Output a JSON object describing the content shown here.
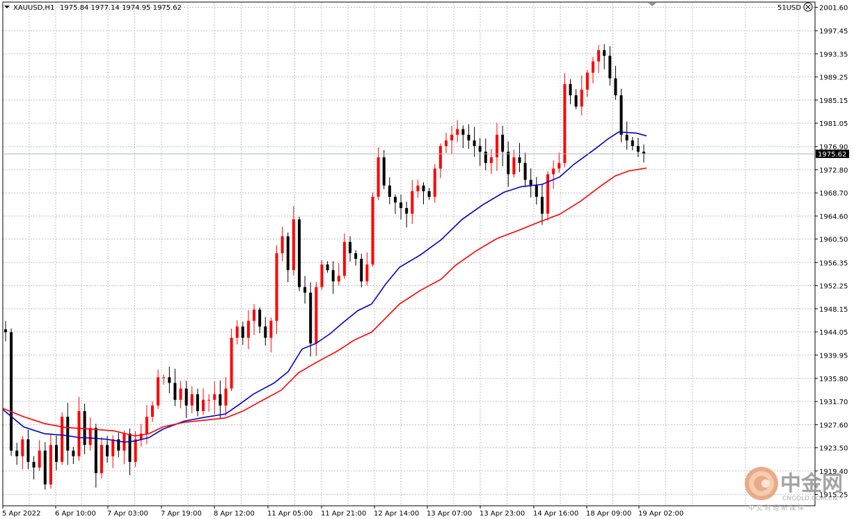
{
  "header": {
    "symbol_info": "XAUUSD,H1",
    "ohlc": "1975.84 1977.14 1974.95 1975.62",
    "account": "51USD",
    "close_icon": "close-circle-icon",
    "menu_icon": "triangle-down-icon"
  },
  "watermark": {
    "brand": "中金网",
    "sub": "中 文 财 经 新 媒 体",
    "domain": "CNGOLD.COM.CN",
    "logo_icon": "cngold-logo-icon"
  },
  "colors": {
    "bull": "#ff0000",
    "bear": "#000000",
    "ma_fast": "#0000cd",
    "ma_slow": "#ff0000",
    "grid": "#c0c0c0",
    "price_line": "#a7b4c5",
    "price_tag_bg": "#000000",
    "price_tag_fg": "#ffffff"
  },
  "chart_data": {
    "type": "candlestick",
    "symbol": "XAUUSD",
    "timeframe": "H1",
    "current_price": 1975.62,
    "ylim": [
      1915.25,
      2001.6
    ],
    "y_ticks": [
      "2001.60",
      "1997.45",
      "1993.35",
      "1989.25",
      "1985.15",
      "1981.05",
      "1976.90",
      "1972.80",
      "1968.70",
      "1964.60",
      "1960.50",
      "1956.35",
      "1952.25",
      "1948.15",
      "1944.05",
      "1939.95",
      "1935.80",
      "1931.70",
      "1927.60",
      "1923.50",
      "1919.40",
      "1915.25"
    ],
    "x_ticks": [
      "5 Apr 2022",
      "6 Apr 10:00",
      "7 Apr 03:00",
      "7 Apr 19:00",
      "8 Apr 12:00",
      "11 Apr 05:00",
      "11 Apr 21:00",
      "12 Apr 14:00",
      "13 Apr 07:00",
      "13 Apr 23:00",
      "14 Apr 16:00",
      "18 Apr 09:00",
      "19 Apr 02:00"
    ],
    "grid": true,
    "series": [
      {
        "kind": "ohlc",
        "close_path": [
          1944,
          1923,
          1922,
          1925,
          1921,
          1920,
          1923,
          1917,
          1924,
          1921,
          1929,
          1923,
          1922,
          1930,
          1924,
          1927,
          1919,
          1924,
          1922,
          1925,
          1923,
          1926,
          1921,
          1925,
          1926,
          1929,
          1931,
          1936,
          1936,
          1935,
          1932,
          1934,
          1931,
          1933,
          1930,
          1932,
          1932,
          1933,
          1931,
          1934,
          1943,
          1945,
          1943,
          1946,
          1948,
          1945,
          1943,
          1946,
          1958,
          1961,
          1955,
          1964,
          1952,
          1951,
          1942,
          1952,
          1956,
          1955,
          1953,
          1954,
          1960,
          1958,
          1957,
          1953,
          1956,
          1968,
          1975,
          1970,
          1968,
          1967,
          1966,
          1965,
          1969,
          1970,
          1969,
          1968,
          1973,
          1977,
          1978,
          1979,
          1980,
          1979,
          1978,
          1977,
          1976,
          1974,
          1975,
          1979,
          1976,
          1972,
          1975,
          1974,
          1971,
          1970,
          1968,
          1965,
          1972,
          1973,
          1974,
          1988,
          1986,
          1984,
          1987,
          1990,
          1992,
          1994,
          1993,
          1989,
          1986,
          1979,
          1978,
          1977,
          1976,
          1975.62
        ]
      },
      {
        "kind": "ma",
        "name": "",
        "color": "#0000cd",
        "points": [
          [
            0,
            1930.3
          ],
          [
            30,
            1927.2
          ],
          [
            60,
            1926.0
          ],
          [
            90,
            1925.7
          ],
          [
            110,
            1925.3
          ],
          [
            130,
            1925.2
          ],
          [
            150,
            1925.0
          ],
          [
            175,
            1924.5
          ],
          [
            190,
            1924.7
          ],
          [
            210,
            1925.3
          ],
          [
            230,
            1926.8
          ],
          [
            260,
            1928.2
          ],
          [
            290,
            1928.9
          ],
          [
            320,
            1929.5
          ],
          [
            340,
            1931.2
          ],
          [
            360,
            1933.0
          ],
          [
            390,
            1935.0
          ],
          [
            410,
            1937.0
          ],
          [
            430,
            1941.0
          ],
          [
            450,
            1942.0
          ],
          [
            470,
            1943.7
          ],
          [
            490,
            1945.8
          ],
          [
            510,
            1947.8
          ],
          [
            530,
            1949.0
          ],
          [
            550,
            1952.5
          ],
          [
            570,
            1955.5
          ],
          [
            600,
            1957.7
          ],
          [
            630,
            1960.4
          ],
          [
            660,
            1964.0
          ],
          [
            690,
            1966.6
          ],
          [
            720,
            1968.8
          ],
          [
            745,
            1969.8
          ],
          [
            775,
            1970.2
          ],
          [
            800,
            1971.5
          ],
          [
            820,
            1973.7
          ],
          [
            850,
            1976.4
          ],
          [
            870,
            1978.3
          ],
          [
            885,
            1979.5
          ],
          [
            910,
            1979.3
          ],
          [
            925,
            1978.8
          ]
        ]
      },
      {
        "kind": "ma",
        "name": "",
        "color": "#ff0000",
        "points": [
          [
            0,
            1930.5
          ],
          [
            30,
            1929.0
          ],
          [
            60,
            1927.8
          ],
          [
            90,
            1927.1
          ],
          [
            130,
            1926.8
          ],
          [
            160,
            1926.5
          ],
          [
            190,
            1925.6
          ],
          [
            210,
            1926.0
          ],
          [
            230,
            1927.2
          ],
          [
            260,
            1928.0
          ],
          [
            290,
            1928.4
          ],
          [
            320,
            1928.8
          ],
          [
            345,
            1930.0
          ],
          [
            370,
            1931.7
          ],
          [
            400,
            1933.7
          ],
          [
            425,
            1936.8
          ],
          [
            450,
            1938.6
          ],
          [
            480,
            1940.6
          ],
          [
            505,
            1942.6
          ],
          [
            530,
            1944.0
          ],
          [
            550,
            1946.5
          ],
          [
            570,
            1949.0
          ],
          [
            600,
            1951.4
          ],
          [
            630,
            1953.4
          ],
          [
            650,
            1955.8
          ],
          [
            680,
            1958.4
          ],
          [
            710,
            1960.6
          ],
          [
            740,
            1962.0
          ],
          [
            770,
            1963.5
          ],
          [
            800,
            1964.9
          ],
          [
            830,
            1967.2
          ],
          [
            860,
            1970.0
          ],
          [
            880,
            1971.7
          ],
          [
            900,
            1972.6
          ],
          [
            925,
            1973.1
          ]
        ]
      }
    ]
  }
}
